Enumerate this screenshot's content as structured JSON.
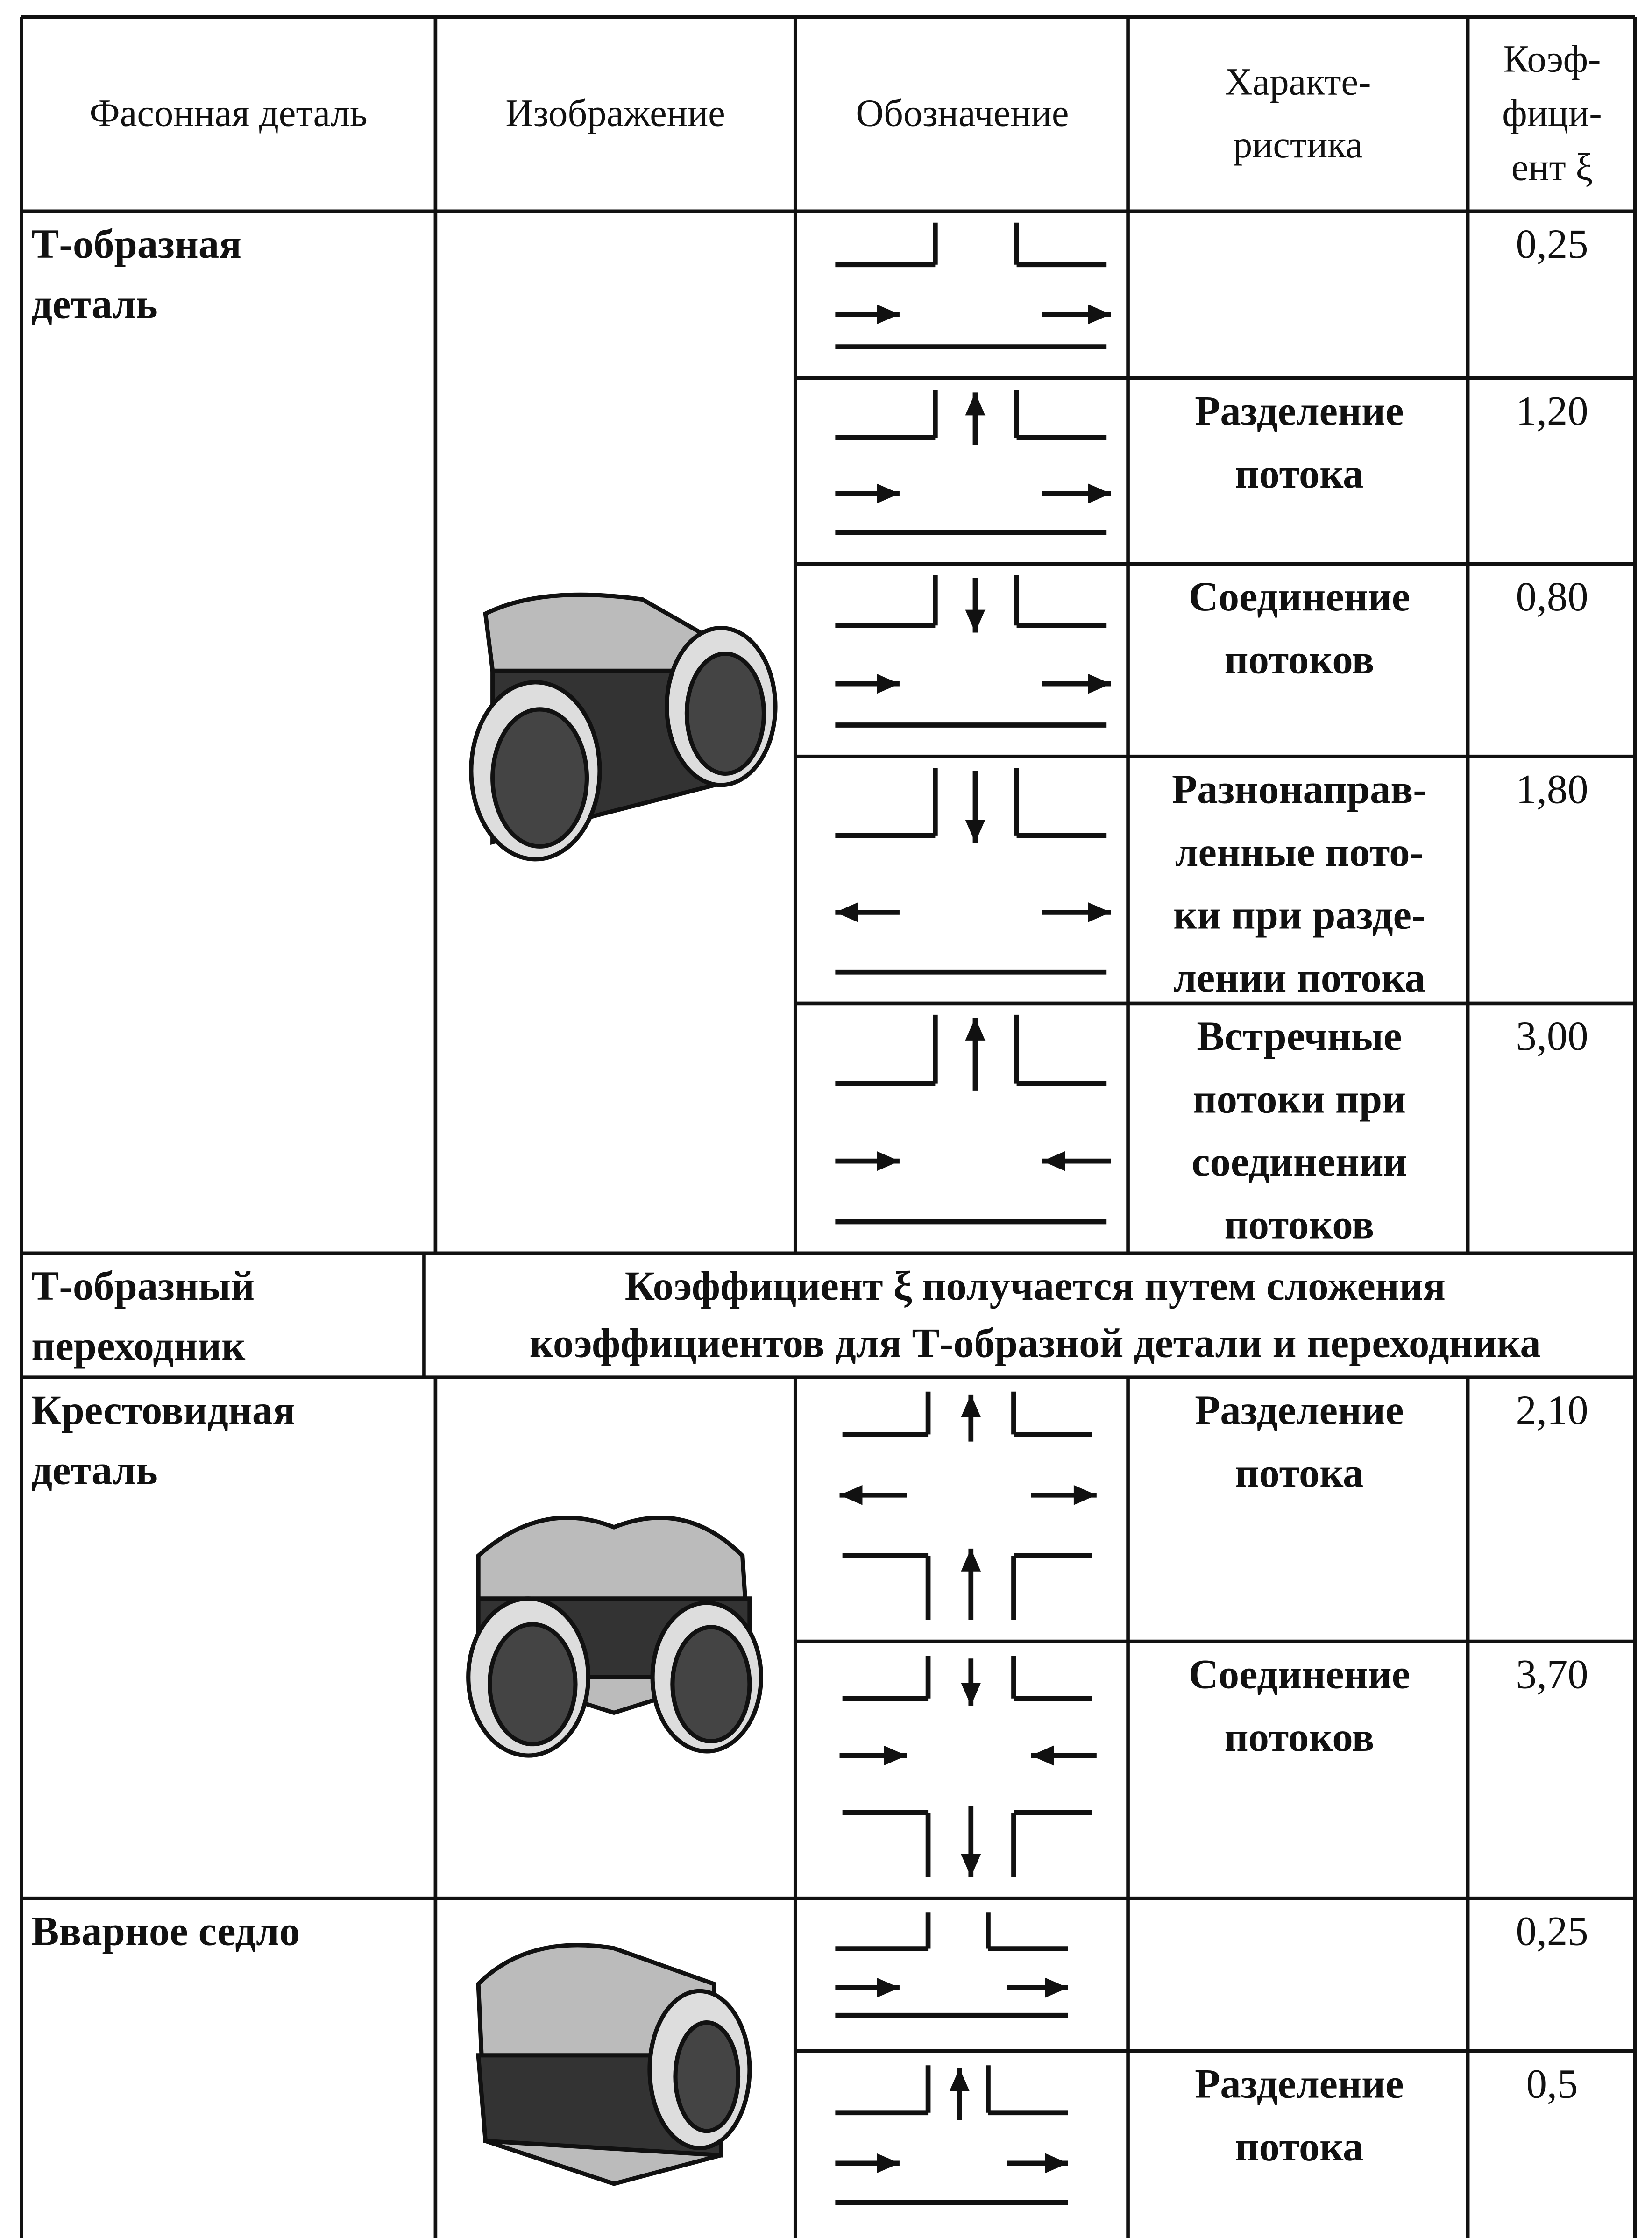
{
  "table": {
    "header": [
      [
        "Фасонная деталь"
      ],
      [
        "Изображение"
      ],
      [
        "Обозначение"
      ],
      [
        "Характе-",
        "ристика"
      ],
      [
        "Коэф-",
        "фици-",
        "ент ξ"
      ]
    ],
    "rows": [
      {
        "part": [
          "Т-образная",
          "деталь"
        ],
        "subrows": [
          {
            "coefficient": "0,25"
          },
          {
            "characteristic": [
              "Разделение",
              "потока"
            ],
            "coefficient": "1,20"
          },
          {
            "characteristic": [
              "Соединение",
              "потоков"
            ],
            "coefficient": "0,80"
          },
          {
            "characteristic": [
              "Разнонаправ-",
              "ленные пото-",
              "ки при разде-",
              "лении потока"
            ],
            "coefficient": "1,80"
          },
          {
            "characteristic": [
              "Встречные",
              "потоки при",
              "соединении",
              "потоков"
            ],
            "coefficient": "3,00"
          }
        ]
      },
      {
        "part": [
          "Т-образный",
          "переходник"
        ],
        "note": [
          "Коэффициент ξ получается путем сложения",
          "коэффициентов для Т-образной детали и переходника"
        ]
      },
      {
        "part": [
          "Крестовидная",
          "деталь"
        ],
        "subrows": [
          {
            "characteristic": [
              "Разделение",
              "потока"
            ],
            "coefficient": "2,10"
          },
          {
            "characteristic": [
              "Соединение",
              "потоков"
            ],
            "coefficient": "3,70"
          }
        ]
      },
      {
        "part": [
          "Вварное седло"
        ],
        "subrows": [
          {
            "coefficient": "0,25"
          },
          {
            "characteristic": [
              "Разделение",
              "потока"
            ],
            "coefficient": "0,5"
          }
        ]
      }
    ]
  }
}
